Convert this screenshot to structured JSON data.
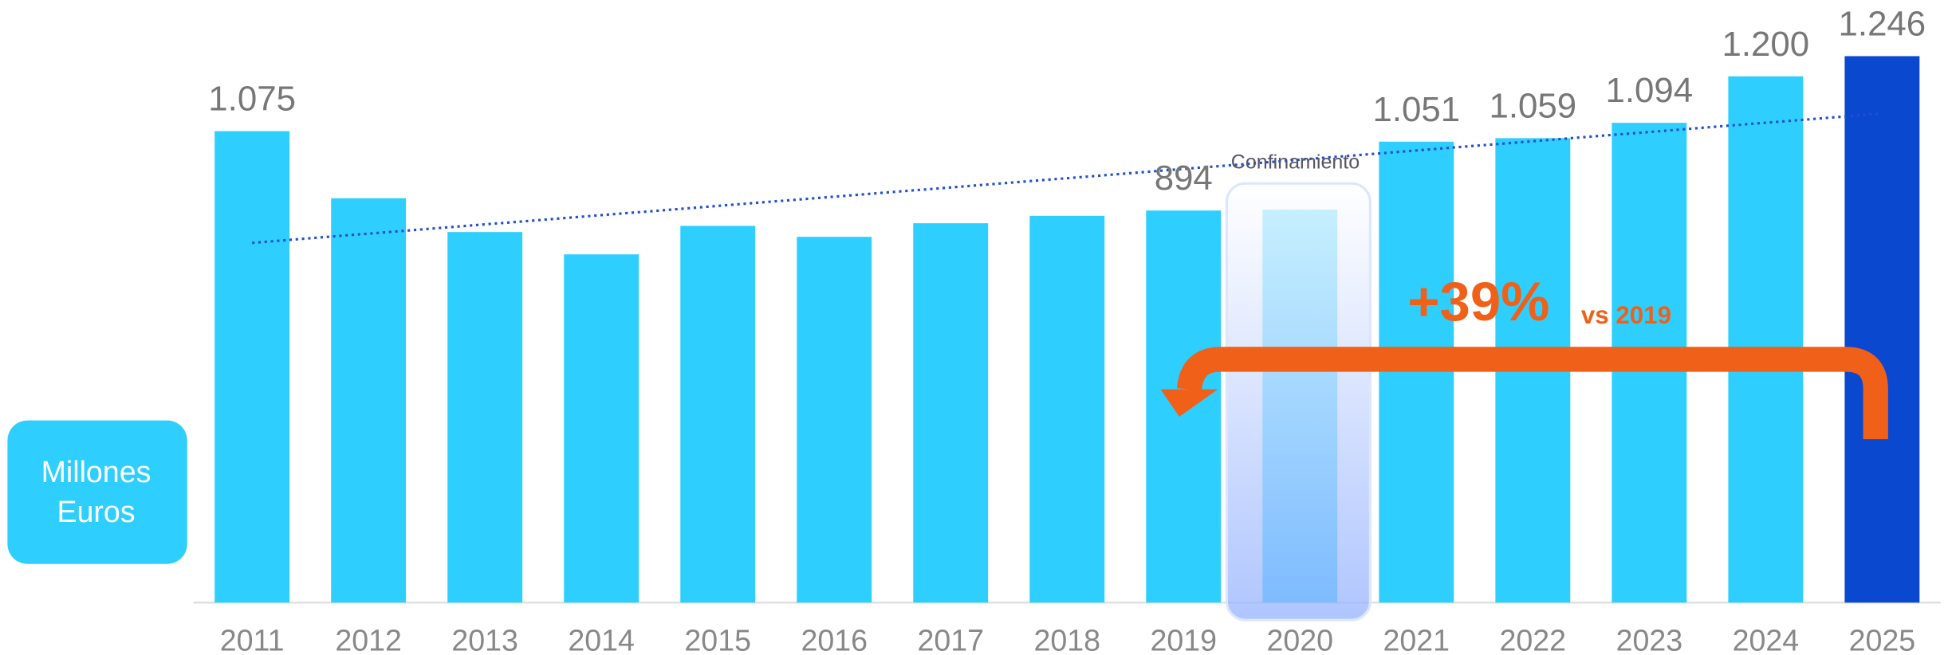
{
  "chart_data": {
    "type": "bar",
    "categories": [
      "2011",
      "2012",
      "2013",
      "2014",
      "2015",
      "2016",
      "2017",
      "2018",
      "2019",
      "2020",
      "2021",
      "2022",
      "2023",
      "2024",
      "2025"
    ],
    "values": [
      1075,
      922,
      845,
      794,
      859,
      834,
      865,
      882,
      894,
      896,
      1051,
      1059,
      1094,
      1200,
      1246
    ],
    "value_labels": [
      "1.075",
      null,
      null,
      null,
      null,
      null,
      null,
      null,
      "894",
      null,
      "1.051",
      "1.059",
      "1.094",
      "1.200",
      "1.246"
    ],
    "colors": [
      "#2ecfff",
      "#2ecfff",
      "#2ecfff",
      "#2ecfff",
      "#2ecfff",
      "#2ecfff",
      "#2ecfff",
      "#2ecfff",
      "#2ecfff",
      "#2ecfff",
      "#2ecfff",
      "#2ecfff",
      "#2ecfff",
      "#2ecfff",
      "#0a48d0"
    ],
    "trendline": true,
    "annotations": {
      "highlight": "Confinamiento",
      "growth": "+39%",
      "growth_note": "vs 2019"
    },
    "unit_label": [
      "Millones",
      "Euros"
    ]
  }
}
